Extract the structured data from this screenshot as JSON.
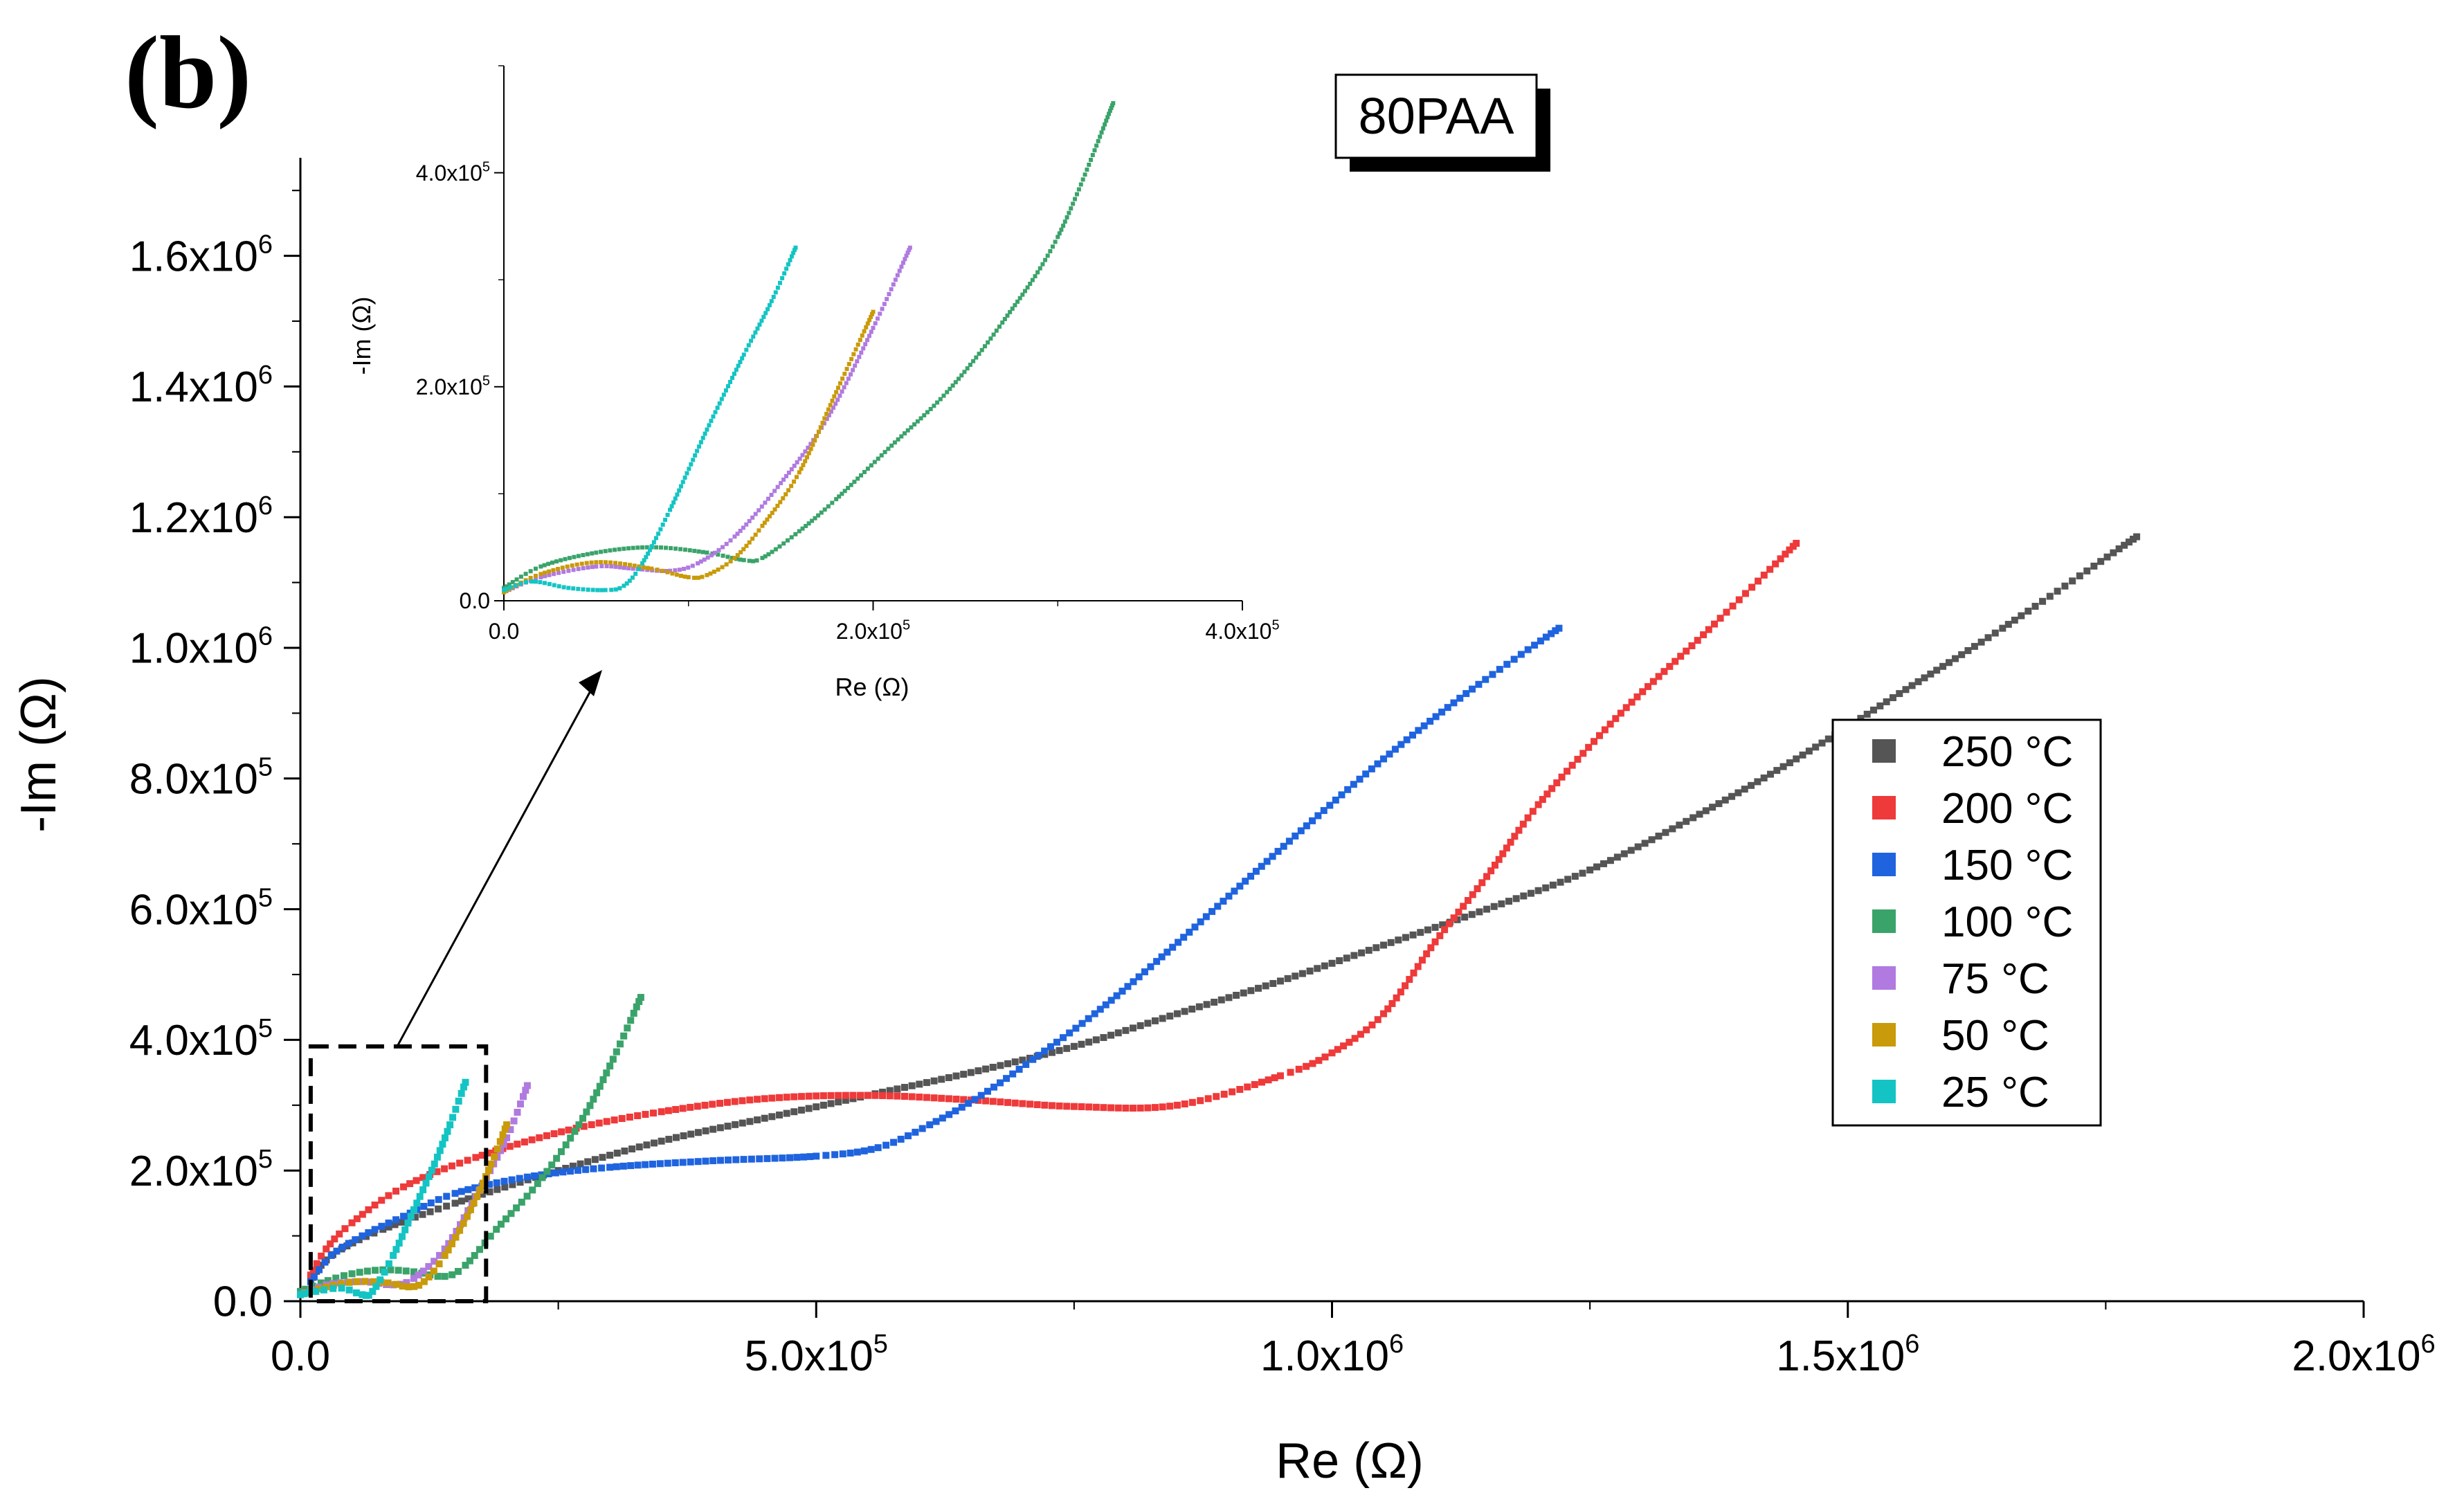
{
  "panel_label": "(b)",
  "sample_label": "80PAA",
  "chart_data": [
    {
      "id": "main",
      "type": "scatter",
      "xlabel": "Re (Ω)",
      "ylabel": "-Im (Ω)",
      "xlim": [
        0,
        2000000
      ],
      "ylim": [
        0,
        1750000
      ],
      "x_ticks": [
        {
          "value": 0,
          "mantissa": "0.0",
          "exp": ""
        },
        {
          "value": 500000,
          "mantissa": "5.0x10",
          "exp": "5"
        },
        {
          "value": 1000000,
          "mantissa": "1.0x10",
          "exp": "6"
        },
        {
          "value": 1500000,
          "mantissa": "1.5x10",
          "exp": "6"
        },
        {
          "value": 2000000,
          "mantissa": "2.0x10",
          "exp": "6"
        }
      ],
      "y_ticks": [
        {
          "value": 0,
          "mantissa": "0.0",
          "exp": ""
        },
        {
          "value": 200000,
          "mantissa": "2.0x10",
          "exp": "5"
        },
        {
          "value": 400000,
          "mantissa": "4.0x10",
          "exp": "5"
        },
        {
          "value": 600000,
          "mantissa": "6.0x10",
          "exp": "5"
        },
        {
          "value": 800000,
          "mantissa": "8.0x10",
          "exp": "5"
        },
        {
          "value": 1000000,
          "mantissa": "1.0x10",
          "exp": "6"
        },
        {
          "value": 1200000,
          "mantissa": "1.2x10",
          "exp": "6"
        },
        {
          "value": 1400000,
          "mantissa": "1.4x10",
          "exp": "6"
        },
        {
          "value": 1600000,
          "mantissa": "1.6x10",
          "exp": "6"
        }
      ],
      "x_minor_step": 250000,
      "y_minor_step": 100000,
      "legend_position": "right",
      "zoom_box": {
        "x": [
          10000,
          180000
        ],
        "y": [
          0,
          390000
        ]
      },
      "series": [
        {
          "name": "250 °C",
          "color": "#555555",
          "points": [
            [
              10000,
              30000
            ],
            [
              20000,
              55000
            ],
            [
              40000,
              80000
            ],
            [
              80000,
              110000
            ],
            [
              150000,
              150000
            ],
            [
              250000,
              200000
            ],
            [
              350000,
              245000
            ],
            [
              450000,
              280000
            ],
            [
              550000,
              315000
            ],
            [
              650000,
              350000
            ],
            [
              750000,
              390000
            ],
            [
              850000,
              440000
            ],
            [
              950000,
              490000
            ],
            [
              1050000,
              545000
            ],
            [
              1150000,
              600000
            ],
            [
              1250000,
              660000
            ],
            [
              1350000,
              740000
            ],
            [
              1450000,
              830000
            ],
            [
              1550000,
              930000
            ],
            [
              1650000,
              1030000
            ],
            [
              1780000,
              1170000
            ]
          ]
        },
        {
          "name": "200 °C",
          "color": "#ee3a3a",
          "points": [
            [
              10000,
              40000
            ],
            [
              25000,
              80000
            ],
            [
              50000,
              120000
            ],
            [
              100000,
              175000
            ],
            [
              170000,
              220000
            ],
            [
              260000,
              262000
            ],
            [
              350000,
              290000
            ],
            [
              450000,
              310000
            ],
            [
              550000,
              315000
            ],
            [
              650000,
              308000
            ],
            [
              750000,
              298000
            ],
            [
              850000,
              300000
            ],
            [
              950000,
              345000
            ],
            [
              1000000,
              380000
            ],
            [
              1050000,
              440000
            ],
            [
              1100000,
              550000
            ],
            [
              1150000,
              650000
            ],
            [
              1200000,
              760000
            ],
            [
              1280000,
              900000
            ],
            [
              1360000,
              1020000
            ],
            [
              1450000,
              1160000
            ]
          ]
        },
        {
          "name": "150 °C",
          "color": "#1f64de",
          "points": [
            [
              10000,
              30000
            ],
            [
              30000,
              70000
            ],
            [
              60000,
              100000
            ],
            [
              100000,
              130000
            ],
            [
              150000,
              165000
            ],
            [
              220000,
              190000
            ],
            [
              300000,
              205000
            ],
            [
              400000,
              215000
            ],
            [
              500000,
              222000
            ],
            [
              560000,
              235000
            ],
            [
              610000,
              270000
            ],
            [
              660000,
              315000
            ],
            [
              710000,
              370000
            ],
            [
              770000,
              440000
            ],
            [
              830000,
              520000
            ],
            [
              900000,
              620000
            ],
            [
              970000,
              720000
            ],
            [
              1050000,
              830000
            ],
            [
              1130000,
              930000
            ],
            [
              1220000,
              1030000
            ]
          ]
        },
        {
          "name": "100 °C",
          "color": "#3aa36a",
          "points": [
            [
              0,
              15000
            ],
            [
              20000,
              28000
            ],
            [
              50000,
              42000
            ],
            [
              80000,
              48000
            ],
            [
              110000,
              45000
            ],
            [
              140000,
              38000
            ],
            [
              160000,
              55000
            ],
            [
              190000,
              110000
            ],
            [
              230000,
              180000
            ],
            [
              270000,
              270000
            ],
            [
              300000,
              360000
            ],
            [
              330000,
              465000
            ]
          ]
        },
        {
          "name": "75 °C",
          "color": "#b07ae0",
          "points": [
            [
              0,
              10000
            ],
            [
              25000,
              25000
            ],
            [
              60000,
              30000
            ],
            [
              90000,
              25000
            ],
            [
              110000,
              35000
            ],
            [
              140000,
              80000
            ],
            [
              170000,
              160000
            ],
            [
              200000,
              250000
            ],
            [
              220000,
              330000
            ]
          ]
        },
        {
          "name": "50 °C",
          "color": "#c99a0a",
          "points": [
            [
              0,
              10000
            ],
            [
              25000,
              22000
            ],
            [
              55000,
              30000
            ],
            [
              85000,
              28000
            ],
            [
              105000,
              22000
            ],
            [
              120000,
              30000
            ],
            [
              140000,
              70000
            ],
            [
              165000,
              140000
            ],
            [
              185000,
              210000
            ],
            [
              200000,
              270000
            ]
          ]
        },
        {
          "name": "25 °C",
          "color": "#14c4c4",
          "points": [
            [
              0,
              10000
            ],
            [
              15000,
              15000
            ],
            [
              40000,
              20000
            ],
            [
              60000,
              10000
            ],
            [
              70000,
              15000
            ],
            [
              90000,
              70000
            ],
            [
              110000,
              140000
            ],
            [
              130000,
              210000
            ],
            [
              145000,
              270000
            ],
            [
              160000,
              335000
            ]
          ]
        }
      ]
    },
    {
      "id": "inset",
      "type": "scatter",
      "xlabel": "Re (Ω)",
      "ylabel": "-Im (Ω)",
      "xlim": [
        0,
        400000
      ],
      "ylim": [
        0,
        500000
      ],
      "x_ticks": [
        {
          "value": 0,
          "mantissa": "0.0",
          "exp": ""
        },
        {
          "value": 200000,
          "mantissa": "2.0x10",
          "exp": "5"
        },
        {
          "value": 400000,
          "mantissa": "4.0x10",
          "exp": "5"
        }
      ],
      "y_ticks": [
        {
          "value": 0,
          "mantissa": "0.0",
          "exp": ""
        },
        {
          "value": 200000,
          "mantissa": "2.0x10",
          "exp": "5"
        },
        {
          "value": 400000,
          "mantissa": "4.0x10",
          "exp": "5"
        }
      ],
      "x_minor_step": 100000,
      "y_minor_step": 100000,
      "series": [
        {
          "name": "100 °C",
          "color": "#3aa36a",
          "points": [
            [
              0,
              12000
            ],
            [
              20000,
              32000
            ],
            [
              50000,
              45000
            ],
            [
              80000,
              50000
            ],
            [
              110000,
              45000
            ],
            [
              130000,
              38000
            ],
            [
              140000,
              40000
            ],
            [
              160000,
              65000
            ],
            [
              180000,
              95000
            ],
            [
              210000,
              145000
            ],
            [
              240000,
              195000
            ],
            [
              270000,
              260000
            ],
            [
              300000,
              340000
            ],
            [
              330000,
              465000
            ]
          ]
        },
        {
          "name": "75 °C",
          "color": "#b07ae0",
          "points": [
            [
              0,
              8000
            ],
            [
              20000,
              22000
            ],
            [
              50000,
              32000
            ],
            [
              70000,
              30000
            ],
            [
              90000,
              28000
            ],
            [
              105000,
              35000
            ],
            [
              125000,
              60000
            ],
            [
              150000,
              110000
            ],
            [
              175000,
              170000
            ],
            [
              200000,
              255000
            ],
            [
              220000,
              330000
            ]
          ]
        },
        {
          "name": "50 °C",
          "color": "#c99a0a",
          "points": [
            [
              0,
              8000
            ],
            [
              20000,
              25000
            ],
            [
              50000,
              36000
            ],
            [
              80000,
              30000
            ],
            [
              100000,
              22000
            ],
            [
              110000,
              24000
            ],
            [
              125000,
              40000
            ],
            [
              140000,
              70000
            ],
            [
              160000,
              120000
            ],
            [
              180000,
              195000
            ],
            [
              200000,
              270000
            ]
          ]
        },
        {
          "name": "25 °C",
          "color": "#14c4c4",
          "points": [
            [
              0,
              10000
            ],
            [
              15000,
              18000
            ],
            [
              35000,
              12000
            ],
            [
              55000,
              10000
            ],
            [
              65000,
              14000
            ],
            [
              75000,
              35000
            ],
            [
              90000,
              85000
            ],
            [
              110000,
              160000
            ],
            [
              130000,
              230000
            ],
            [
              145000,
              280000
            ],
            [
              158000,
              330000
            ]
          ]
        }
      ]
    }
  ]
}
